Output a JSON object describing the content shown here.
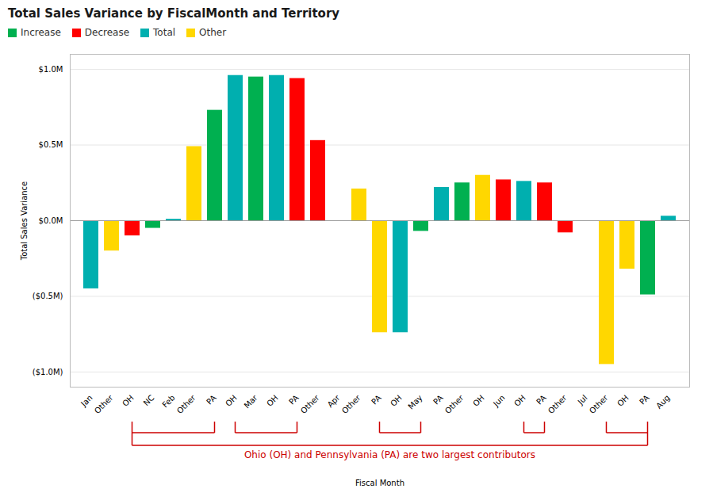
{
  "chart_data": {
    "type": "bar",
    "title": "Total Sales Variance by FiscalMonth and Territory",
    "xlabel": "Fiscal Month",
    "ylabel": "Total Sales Variance",
    "categories": [
      "Jan",
      "Other",
      "OH",
      "NC",
      "Feb",
      "Other",
      "PA",
      "OH",
      "Mar",
      "OH",
      "PA",
      "Other",
      "Apr",
      "Other",
      "PA",
      "OH",
      "May",
      "PA",
      "Other",
      "OH",
      "Jun",
      "OH",
      "PA",
      "Other",
      "Jul",
      "Other",
      "OH",
      "PA",
      "Aug"
    ],
    "series": [
      {
        "name": "Increase",
        "color": "#00B050",
        "values": [
          null,
          null,
          null,
          -50000,
          null,
          null,
          730000,
          null,
          950000,
          null,
          null,
          null,
          null,
          null,
          null,
          null,
          -70000,
          null,
          250000,
          null,
          null,
          null,
          null,
          null,
          null,
          null,
          null,
          -490000,
          null
        ]
      },
      {
        "name": "Decrease",
        "color": "#FF0000",
        "values": [
          null,
          null,
          -100000,
          null,
          null,
          null,
          null,
          null,
          null,
          null,
          940000,
          530000,
          0,
          null,
          null,
          null,
          null,
          null,
          null,
          null,
          270000,
          null,
          250000,
          -80000,
          null,
          null,
          null,
          null,
          null
        ]
      },
      {
        "name": "Total",
        "color": "#00AFAF",
        "values": [
          -450000,
          null,
          null,
          null,
          10000,
          null,
          null,
          960000,
          null,
          960000,
          null,
          null,
          null,
          null,
          null,
          -740000,
          null,
          220000,
          null,
          null,
          null,
          260000,
          null,
          null,
          0,
          null,
          null,
          null,
          30000
        ]
      },
      {
        "name": "Other",
        "color": "#FFD700",
        "values": [
          null,
          -200000,
          null,
          null,
          null,
          490000,
          null,
          null,
          null,
          null,
          null,
          null,
          null,
          210000,
          -740000,
          null,
          null,
          null,
          null,
          300000,
          null,
          null,
          null,
          null,
          null,
          -950000,
          -320000,
          null,
          null
        ]
      }
    ],
    "ylim": [
      -1100000,
      1100000
    ],
    "yticks": [
      {
        "value": -1000000,
        "label": "($1.0M)"
      },
      {
        "value": -500000,
        "label": "($0.5M)"
      },
      {
        "value": 0,
        "label": "$0.0M"
      },
      {
        "value": 500000,
        "label": "$0.5M"
      },
      {
        "value": 1000000,
        "label": "$1.0M"
      }
    ],
    "grid": true,
    "legend": "upper left",
    "annotation": {
      "text": "Ohio (OH) and Pennsylvania (PA) are two largest contributors",
      "color": "#CC0000",
      "brackets": [
        [
          2,
          6
        ],
        [
          7,
          10
        ],
        [
          14,
          16
        ],
        [
          21,
          22
        ],
        [
          25,
          27
        ]
      ]
    }
  }
}
